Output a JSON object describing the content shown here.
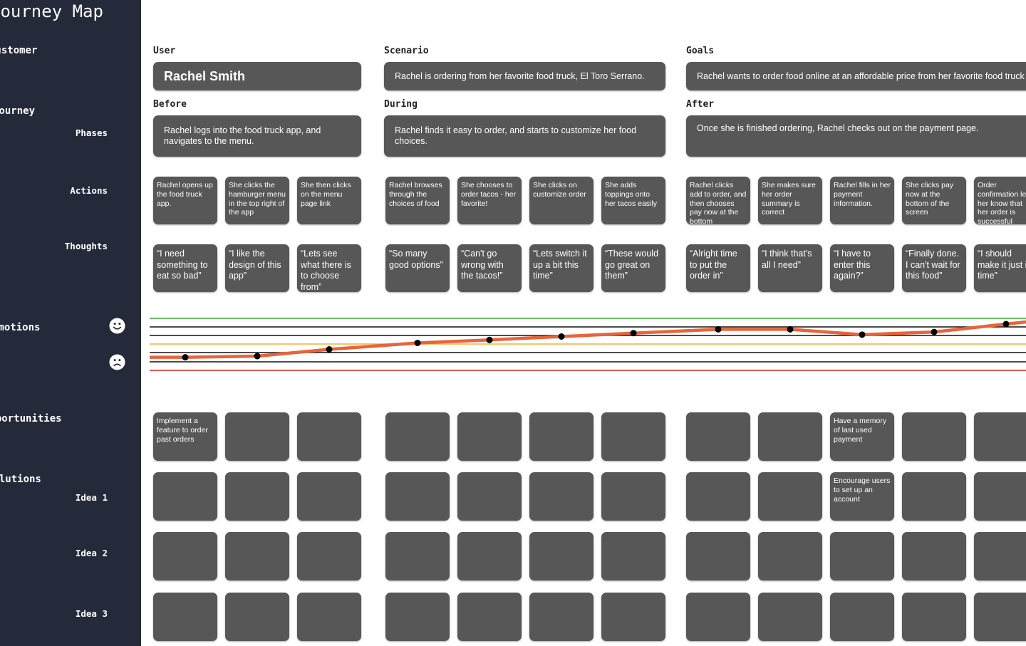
{
  "sidebar": {
    "title": "Journey Map",
    "customer": "Customer",
    "journey": "Journey",
    "phases": "Phases",
    "actions": "Actions",
    "thoughts": "Thoughts",
    "emotions": "Emotions",
    "opportunities": "Opportunities",
    "solutions": "Solutions",
    "idea1": "Idea 1",
    "idea2": "Idea 2",
    "idea3": "Idea 3"
  },
  "header": {
    "user_label": "User",
    "user": "Rachel Smith",
    "scenario_label": "Scenario",
    "scenario": "Rachel is ordering from her favorite food truck, El Toro Serrano.",
    "goals_label": "Goals",
    "goals": "Rachel wants to order food online at an affordable price from her favorite food truck"
  },
  "phases": {
    "before_label": "Before",
    "before": "Rachel logs into the food truck app, and navigates to the menu.",
    "during_label": "During",
    "during": "Rachel finds it easy to order, and starts to customize her food choices.",
    "after_label": "After",
    "after": "Once she is finished ordering, Rachel checks out on the payment page."
  },
  "actions": [
    "Rachel opens up the food truck app.",
    "She clicks the hamburger menu in the top right of the app",
    "She then clicks on the menu page link",
    "Rachel browses through the choices of food",
    "She chooses to order tacos - her favorite!",
    "She clicks on customize order",
    "She adds toppings onto her tacos easily",
    "Rachel clicks add to order, and then chooses pay now at the bottom",
    "She makes sure her order summary is correct",
    "Rachel fills in her payment information.",
    "She clicks pay now at the bottom of the screen",
    "Order confirmation lets her know that her order is successful"
  ],
  "thoughts": [
    "“I need something to eat so bad”",
    "“I like the design of this app”",
    "“Lets see what there is to choose from”",
    "“So many good options”",
    "“Can't go wrong with the tacos!”",
    "“Lets switch it up a bit this time”",
    "“These would go great on them”",
    "“Alright time to put the order in”",
    "“I think that's all I need”",
    "“I have to enter this again?”",
    "“Finally done. I can't wait for this food”",
    "“I should make it just in time”"
  ],
  "emotion_levels": [
    0.12,
    0.15,
    0.33,
    0.5,
    0.58,
    0.67,
    0.76,
    0.86,
    0.86,
    0.72,
    0.79,
    1.0
  ],
  "opportunities": [
    "Implement a feature to order past orders",
    "",
    "",
    "",
    "",
    "",
    "",
    "",
    "",
    "Have a memory of last used payment",
    "",
    ""
  ],
  "idea1": [
    "",
    "",
    "",
    "",
    "",
    "",
    "",
    "",
    "",
    "Encourage users to set up an account",
    "",
    ""
  ],
  "idea2": [
    "",
    "",
    "",
    "",
    "",
    "",
    "",
    "",
    "",
    "",
    "",
    ""
  ],
  "idea3": [
    "",
    "",
    "",
    "",
    "",
    "",
    "",
    "",
    "",
    "",
    "",
    ""
  ],
  "colors": {
    "sidebar": "#242a3a",
    "card": "#575757",
    "emotion_line": "#e8643a",
    "happy_line": "#3aa53a",
    "neutral_line": "#f2b233",
    "sad_line": "#d9261f"
  },
  "icons": {
    "happy": "smiley-face-icon",
    "sad": "frowning-face-icon"
  }
}
